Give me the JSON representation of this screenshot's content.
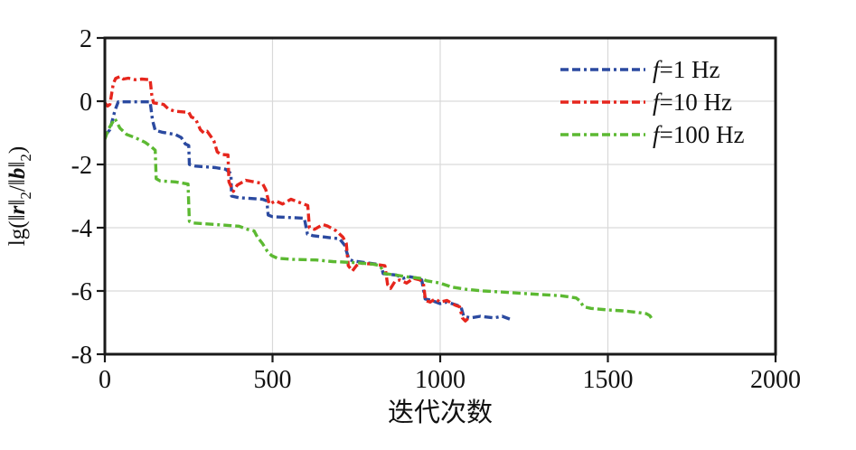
{
  "chart_data": {
    "type": "line",
    "title": "",
    "xlabel": "迭代次数",
    "ylabel": "lg(‖r‖₂/‖b‖₂)",
    "ylabel_parts": [
      {
        "t": "lg(‖"
      },
      {
        "t": "r",
        "bi": true
      },
      {
        "t": "‖"
      },
      {
        "t": "2",
        "sub": true
      },
      {
        "t": "/‖"
      },
      {
        "t": "b",
        "bi": true
      },
      {
        "t": "‖"
      },
      {
        "t": "2",
        "sub": true
      },
      {
        "t": ")"
      }
    ],
    "xlim": [
      0,
      2000
    ],
    "ylim": [
      -8,
      2
    ],
    "xticks": [
      0,
      500,
      1000,
      1500,
      2000
    ],
    "yticks": [
      2,
      0,
      -2,
      -4,
      -6,
      -8
    ],
    "grid": true,
    "grid_color": "#d9d9d9",
    "axis_color": "#1a1a1a",
    "legend_position": "top-right",
    "line_style": "dash-dash-dot",
    "series": [
      {
        "name": "f=1 Hz",
        "label_parts": [
          {
            "t": "f",
            "i": true
          },
          {
            "t": "=1 Hz"
          }
        ],
        "color": "#2b4aa0",
        "points": [
          [
            0,
            -1.1
          ],
          [
            15,
            -0.9
          ],
          [
            30,
            -0.3
          ],
          [
            40,
            -0.02
          ],
          [
            135,
            -0.02
          ],
          [
            142,
            -0.6
          ],
          [
            150,
            -0.92
          ],
          [
            170,
            -0.98
          ],
          [
            210,
            -1.05
          ],
          [
            228,
            -1.15
          ],
          [
            240,
            -1.35
          ],
          [
            250,
            -1.4
          ],
          [
            252,
            -2.0
          ],
          [
            270,
            -2.05
          ],
          [
            330,
            -2.1
          ],
          [
            360,
            -2.15
          ],
          [
            372,
            -2.25
          ],
          [
            376,
            -2.3
          ],
          [
            378,
            -3.0
          ],
          [
            400,
            -3.05
          ],
          [
            470,
            -3.1
          ],
          [
            483,
            -3.15
          ],
          [
            487,
            -3.6
          ],
          [
            500,
            -3.65
          ],
          [
            595,
            -3.7
          ],
          [
            604,
            -4.2
          ],
          [
            620,
            -4.25
          ],
          [
            700,
            -4.35
          ],
          [
            715,
            -4.55
          ],
          [
            722,
            -4.8
          ],
          [
            728,
            -5.0
          ],
          [
            740,
            -5.05
          ],
          [
            810,
            -5.15
          ],
          [
            824,
            -5.2
          ],
          [
            830,
            -5.45
          ],
          [
            870,
            -5.5
          ],
          [
            890,
            -5.6
          ],
          [
            910,
            -5.55
          ],
          [
            935,
            -5.6
          ],
          [
            945,
            -5.65
          ],
          [
            955,
            -6.25
          ],
          [
            975,
            -6.3
          ],
          [
            1000,
            -6.4
          ],
          [
            1020,
            -6.35
          ],
          [
            1050,
            -6.45
          ],
          [
            1062,
            -6.5
          ],
          [
            1070,
            -6.8
          ],
          [
            1090,
            -6.85
          ],
          [
            1120,
            -6.8
          ],
          [
            1160,
            -6.85
          ],
          [
            1185,
            -6.8
          ],
          [
            1210,
            -6.9
          ]
        ]
      },
      {
        "name": "f=10 Hz",
        "label_parts": [
          {
            "t": "f",
            "i": true
          },
          {
            "t": "=10 Hz"
          }
        ],
        "color": "#e6261d",
        "points": [
          [
            0,
            -0.05
          ],
          [
            8,
            -0.15
          ],
          [
            15,
            -0.1
          ],
          [
            25,
            0.55
          ],
          [
            32,
            0.72
          ],
          [
            45,
            0.78
          ],
          [
            55,
            0.7
          ],
          [
            70,
            0.73
          ],
          [
            90,
            0.68
          ],
          [
            110,
            0.7
          ],
          [
            135,
            0.68
          ],
          [
            140,
            0.2
          ],
          [
            145,
            -0.05
          ],
          [
            175,
            -0.1
          ],
          [
            190,
            -0.25
          ],
          [
            210,
            -0.32
          ],
          [
            250,
            -0.35
          ],
          [
            258,
            -0.5
          ],
          [
            270,
            -0.55
          ],
          [
            285,
            -0.9
          ],
          [
            295,
            -1.0
          ],
          [
            305,
            -0.95
          ],
          [
            315,
            -1.1
          ],
          [
            325,
            -1.25
          ],
          [
            335,
            -1.6
          ],
          [
            345,
            -1.68
          ],
          [
            367,
            -1.7
          ],
          [
            370,
            -2.55
          ],
          [
            383,
            -2.85
          ],
          [
            395,
            -2.65
          ],
          [
            420,
            -2.5
          ],
          [
            445,
            -2.55
          ],
          [
            470,
            -2.6
          ],
          [
            480,
            -2.8
          ],
          [
            490,
            -3.25
          ],
          [
            510,
            -3.15
          ],
          [
            530,
            -3.25
          ],
          [
            555,
            -3.1
          ],
          [
            580,
            -3.2
          ],
          [
            605,
            -3.3
          ],
          [
            610,
            -4.0
          ],
          [
            625,
            -4.05
          ],
          [
            650,
            -3.9
          ],
          [
            665,
            -3.95
          ],
          [
            690,
            -4.1
          ],
          [
            710,
            -4.3
          ],
          [
            720,
            -4.5
          ],
          [
            726,
            -5.2
          ],
          [
            738,
            -5.37
          ],
          [
            750,
            -5.2
          ],
          [
            760,
            -5.12
          ],
          [
            800,
            -5.15
          ],
          [
            835,
            -5.2
          ],
          [
            843,
            -5.8
          ],
          [
            852,
            -5.92
          ],
          [
            865,
            -5.7
          ],
          [
            880,
            -5.65
          ],
          [
            900,
            -5.75
          ],
          [
            920,
            -5.6
          ],
          [
            940,
            -5.65
          ],
          [
            950,
            -5.75
          ],
          [
            956,
            -6.3
          ],
          [
            970,
            -6.35
          ],
          [
            985,
            -6.25
          ],
          [
            1000,
            -6.35
          ],
          [
            1020,
            -6.3
          ],
          [
            1045,
            -6.45
          ],
          [
            1058,
            -6.5
          ],
          [
            1066,
            -6.85
          ],
          [
            1075,
            -6.95
          ],
          [
            1085,
            -6.85
          ],
          [
            1090,
            -6.9
          ]
        ]
      },
      {
        "name": "f=100 Hz",
        "label_parts": [
          {
            "t": "f",
            "i": true
          },
          {
            "t": "=100 Hz"
          }
        ],
        "color": "#5cb932",
        "points": [
          [
            0,
            -1.2
          ],
          [
            10,
            -0.9
          ],
          [
            18,
            -0.75
          ],
          [
            30,
            -0.55
          ],
          [
            45,
            -0.85
          ],
          [
            65,
            -1.05
          ],
          [
            90,
            -1.15
          ],
          [
            120,
            -1.3
          ],
          [
            140,
            -1.45
          ],
          [
            150,
            -1.55
          ],
          [
            153,
            -2.45
          ],
          [
            165,
            -2.52
          ],
          [
            210,
            -2.55
          ],
          [
            248,
            -2.62
          ],
          [
            252,
            -3.8
          ],
          [
            265,
            -3.85
          ],
          [
            330,
            -3.9
          ],
          [
            400,
            -3.95
          ],
          [
            412,
            -4.0
          ],
          [
            425,
            -4.05
          ],
          [
            445,
            -4.1
          ],
          [
            455,
            -4.3
          ],
          [
            470,
            -4.5
          ],
          [
            485,
            -4.75
          ],
          [
            497,
            -4.88
          ],
          [
            515,
            -4.97
          ],
          [
            560,
            -5.0
          ],
          [
            630,
            -5.02
          ],
          [
            680,
            -5.07
          ],
          [
            740,
            -5.1
          ],
          [
            800,
            -5.15
          ],
          [
            820,
            -5.2
          ],
          [
            835,
            -5.45
          ],
          [
            870,
            -5.5
          ],
          [
            900,
            -5.55
          ],
          [
            940,
            -5.6
          ],
          [
            960,
            -5.68
          ],
          [
            1000,
            -5.75
          ],
          [
            1035,
            -5.88
          ],
          [
            1080,
            -5.95
          ],
          [
            1130,
            -6.0
          ],
          [
            1180,
            -6.03
          ],
          [
            1250,
            -6.08
          ],
          [
            1310,
            -6.12
          ],
          [
            1360,
            -6.15
          ],
          [
            1405,
            -6.22
          ],
          [
            1415,
            -6.3
          ],
          [
            1428,
            -6.5
          ],
          [
            1450,
            -6.55
          ],
          [
            1500,
            -6.6
          ],
          [
            1545,
            -6.63
          ],
          [
            1590,
            -6.68
          ],
          [
            1615,
            -6.72
          ],
          [
            1625,
            -6.78
          ],
          [
            1635,
            -6.95
          ]
        ]
      }
    ]
  }
}
